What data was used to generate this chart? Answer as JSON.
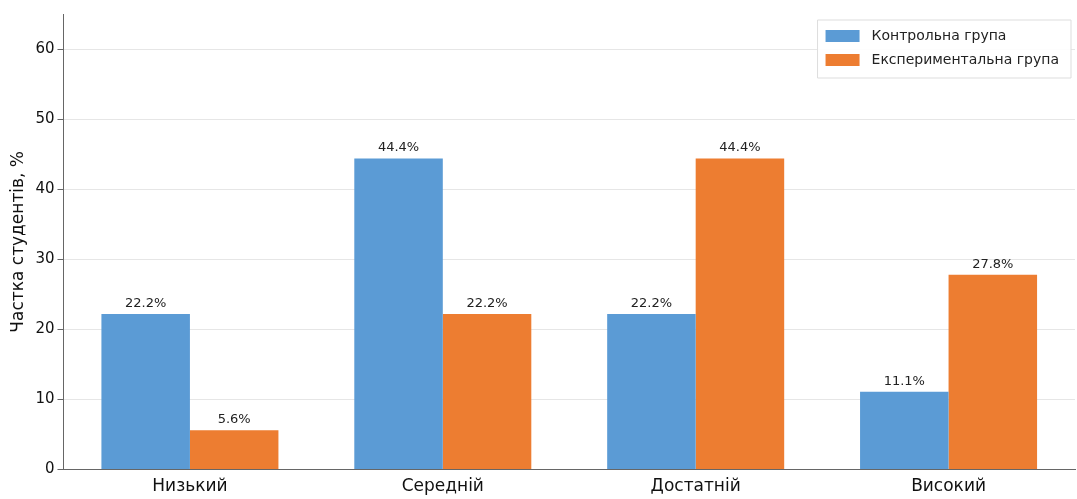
{
  "chart_data": {
    "type": "bar",
    "ylabel": "Частка студентів, %",
    "categories": [
      "Низький",
      "Середній",
      "Достатній",
      "Високий"
    ],
    "series": [
      {
        "name": "Контрольна група",
        "color": "#5b9bd5",
        "values": [
          22.2,
          44.4,
          22.2,
          11.1
        ],
        "value_labels": [
          "22.2%",
          "44.4%",
          "22.2%",
          "11.1%"
        ]
      },
      {
        "name": "Експериментальна група",
        "color": "#ed7d31",
        "values": [
          5.6,
          22.2,
          44.4,
          27.8
        ],
        "value_labels": [
          "5.6%",
          "22.2%",
          "44.4%",
          "27.8%"
        ]
      }
    ],
    "ylim": [
      0,
      65
    ],
    "yticks": [
      0,
      10,
      20,
      30,
      40,
      50,
      60
    ],
    "grid": "y",
    "legend": "top right"
  }
}
